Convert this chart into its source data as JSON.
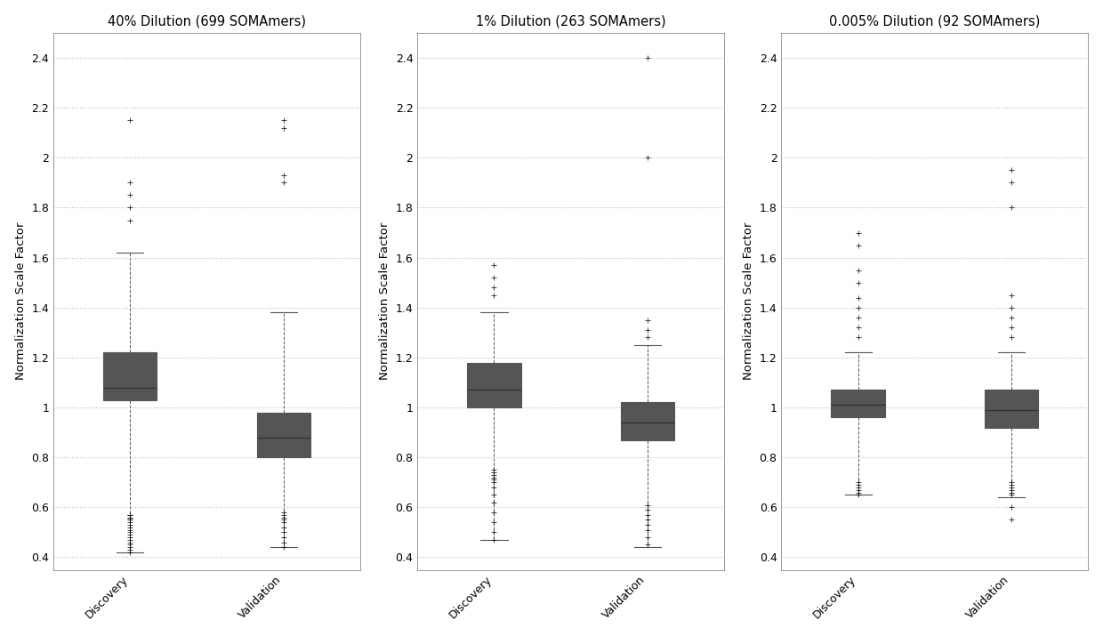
{
  "panels": [
    {
      "title": "40% Dilution (699 SOMAmers)",
      "discovery": {
        "whislo": 0.42,
        "q1": 1.03,
        "med": 1.08,
        "q3": 1.22,
        "whishi": 1.62,
        "fliers_low": [
          0.57,
          0.57,
          0.56,
          0.56,
          0.55,
          0.55,
          0.54,
          0.53,
          0.52,
          0.51,
          0.5,
          0.49,
          0.48,
          0.47,
          0.46,
          0.45,
          0.44,
          0.43,
          0.42
        ],
        "fliers_high": [
          1.75,
          1.8,
          1.85,
          1.9,
          2.15
        ]
      },
      "validation": {
        "whislo": 0.44,
        "q1": 0.8,
        "med": 0.88,
        "q3": 0.98,
        "whishi": 1.38,
        "fliers_low": [
          0.58,
          0.57,
          0.56,
          0.55,
          0.54,
          0.52,
          0.5,
          0.48,
          0.46,
          0.44
        ],
        "fliers_high": [
          1.9,
          1.93,
          2.12,
          2.15
        ]
      }
    },
    {
      "title": "1% Dilution (263 SOMAmers)",
      "discovery": {
        "whislo": 0.47,
        "q1": 1.0,
        "med": 1.07,
        "q3": 1.18,
        "whishi": 1.38,
        "fliers_low": [
          0.75,
          0.74,
          0.73,
          0.72,
          0.71,
          0.7,
          0.68,
          0.65,
          0.62,
          0.58,
          0.54,
          0.5,
          0.47
        ],
        "fliers_high": [
          1.45,
          1.48,
          1.52,
          1.57
        ]
      },
      "validation": {
        "whislo": 0.44,
        "q1": 0.87,
        "med": 0.94,
        "q3": 1.02,
        "whishi": 1.25,
        "fliers_low": [
          0.61,
          0.59,
          0.57,
          0.55,
          0.53,
          0.51,
          0.48,
          0.45
        ],
        "fliers_high": [
          1.28,
          1.31,
          1.35,
          2.0,
          2.4
        ]
      }
    },
    {
      "title": "0.005% Dilution (92 SOMAmers)",
      "discovery": {
        "whislo": 0.65,
        "q1": 0.96,
        "med": 1.01,
        "q3": 1.07,
        "whishi": 1.22,
        "fliers_low": [
          0.7,
          0.69,
          0.68,
          0.67,
          0.66,
          0.65
        ],
        "fliers_high": [
          1.28,
          1.32,
          1.36,
          1.4,
          1.44,
          1.5,
          1.55,
          1.65,
          1.7
        ]
      },
      "validation": {
        "whislo": 0.64,
        "q1": 0.92,
        "med": 0.99,
        "q3": 1.07,
        "whishi": 1.22,
        "fliers_low": [
          0.7,
          0.69,
          0.68,
          0.67,
          0.66,
          0.65,
          0.6,
          0.55
        ],
        "fliers_high": [
          1.28,
          1.32,
          1.36,
          1.4,
          1.45,
          1.8,
          1.9,
          1.95
        ]
      }
    }
  ],
  "ylabel": "Normalization Scale Factor",
  "ylim": [
    0.35,
    2.5
  ],
  "yticks": [
    0.4,
    0.6,
    0.8,
    1.0,
    1.2,
    1.4,
    1.6,
    1.8,
    2.0,
    2.2,
    2.4
  ],
  "categories": [
    "Discovery",
    "Validation"
  ],
  "box_facecolor": "white",
  "box_edgecolor": "#555555",
  "median_color": "#333333",
  "whisker_color": "#555555",
  "flier_color": "#888888",
  "grid_color": "#bbbbbb",
  "background_color": "white",
  "title_fontsize": 10.5,
  "label_fontsize": 9.5,
  "tick_fontsize": 9
}
